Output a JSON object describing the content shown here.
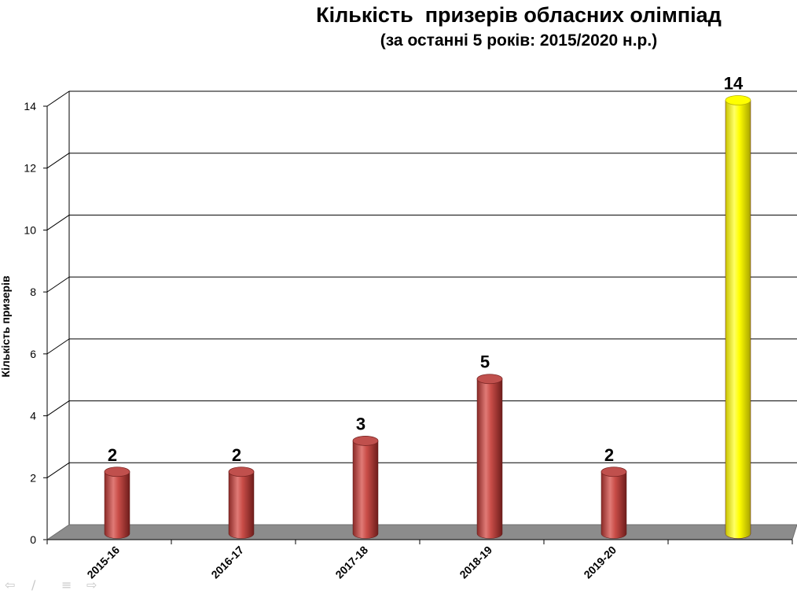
{
  "chart_data": {
    "type": "bar",
    "title": "Кількість  призерів обласних олімпіад",
    "subtitle": "(за останні 5 років: 2015/2020 н.р.)",
    "ylabel": "Кількість призерів",
    "xlabel": "",
    "categories": [
      "2015-16",
      "2016-17",
      "2017-18",
      "2018-19",
      "2019-20",
      ""
    ],
    "values": [
      2,
      2,
      3,
      5,
      2,
      14
    ],
    "data_labels": [
      "2",
      "2",
      "3",
      "5",
      "2",
      "14"
    ],
    "ylim": [
      0,
      14
    ],
    "yticks": [
      0,
      2,
      4,
      6,
      8,
      10,
      12,
      14
    ],
    "ytick_labels": [
      "0",
      "2",
      "4",
      "6",
      "8",
      "10",
      "12",
      "14"
    ],
    "grid": true,
    "legend": "none",
    "style": "3d-cylinder",
    "colors": {
      "bar": "#c0504d",
      "highlight": "#ffff00",
      "floor": "#8c8c8c",
      "grid": "#000000"
    },
    "bar_colors": [
      "bar",
      "bar",
      "bar",
      "bar",
      "bar",
      "highlight"
    ]
  },
  "nav_icons": [
    "arrow-left-icon",
    "pen-icon",
    "menu-icon",
    "arrow-right-icon"
  ]
}
